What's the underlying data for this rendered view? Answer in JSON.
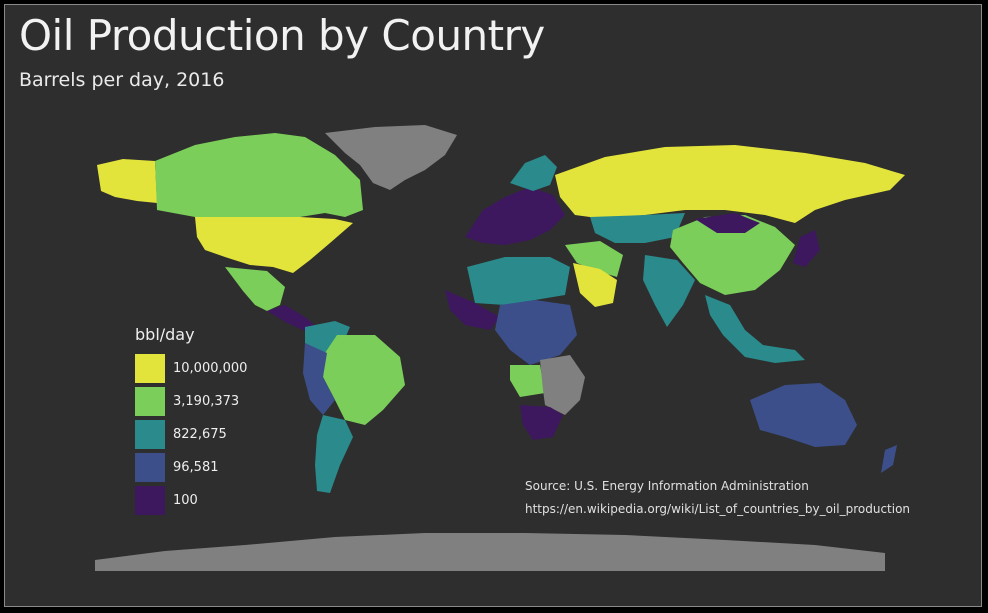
{
  "map": {
    "title": "Oil Production by Country",
    "subtitle": "Barrels per day, 2016",
    "background_color": "#2e2e2e",
    "no_data_color": "#808080",
    "legend": {
      "title": "bbl/day",
      "entries": [
        {
          "label": "10,000,000",
          "color": "#e3e43b"
        },
        {
          "label": "3,190,373",
          "color": "#7cce5a"
        },
        {
          "label": "822,675",
          "color": "#2a8a8c"
        },
        {
          "label": "96,581",
          "color": "#3c4f8b"
        },
        {
          "label": "100",
          "color": "#3d185e"
        }
      ]
    },
    "source": {
      "line1": "Source: U.S. Energy Information Administration",
      "line2": "https://en.wikipedia.org/wiki/List_of_countries_by_oil_production"
    }
  }
}
